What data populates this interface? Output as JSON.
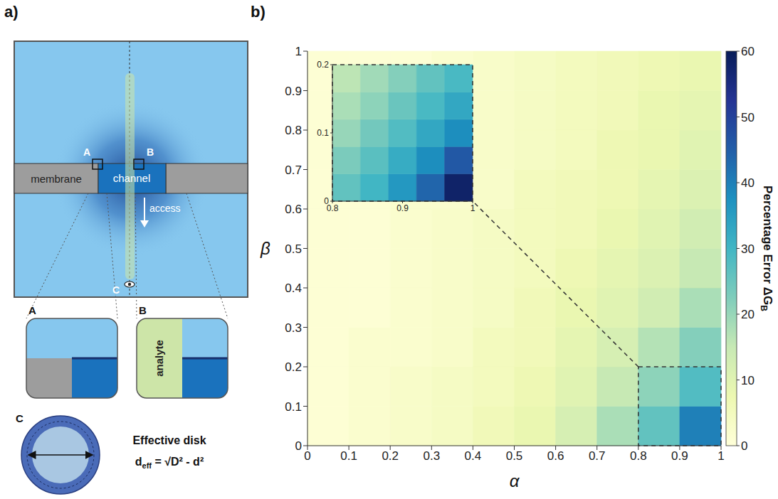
{
  "panel_labels": [
    "a)",
    "b)"
  ],
  "diagram": {
    "membrane": "membrane",
    "channel": "channel",
    "access": "access",
    "markers": [
      "A",
      "B",
      "C"
    ],
    "zooms": [
      {
        "label": "A"
      },
      {
        "label": "B",
        "analyte": "analyte"
      },
      {
        "label": "C",
        "title": "Effective disk",
        "formula": {
          "lhs": "d",
          "lhs_sub": "eff",
          "rhs": "= √D² - d²"
        }
      }
    ]
  },
  "chart_data": [
    {
      "type": "heatmap",
      "x_label": "α",
      "y_label": "β",
      "xlim": [
        0,
        1
      ],
      "ylim": [
        0,
        1
      ],
      "xticks": [
        0,
        0.1,
        0.2,
        0.3,
        0.4,
        0.5,
        0.6,
        0.7,
        0.8,
        0.9,
        1
      ],
      "yticks": [
        0,
        0.1,
        0.2,
        0.3,
        0.4,
        0.5,
        0.6,
        0.7,
        0.8,
        0.9,
        1
      ],
      "x_edges": [
        0,
        0.1,
        0.2,
        0.3,
        0.4,
        0.5,
        0.6,
        0.7,
        0.8,
        0.9,
        1
      ],
      "y_edges": [
        0,
        0.1,
        0.2,
        0.3,
        0.4,
        0.5,
        0.6,
        0.7,
        0.8,
        0.9,
        1
      ],
      "cells": [
        [
          1,
          2,
          3,
          4,
          6,
          8,
          12,
          18,
          26,
          40
        ],
        [
          1,
          2,
          3,
          4,
          5,
          7,
          10,
          15,
          21,
          28
        ],
        [
          1,
          2,
          2,
          3,
          5,
          6,
          9,
          12,
          17,
          22
        ],
        [
          1,
          1,
          2,
          3,
          4,
          6,
          8,
          10,
          13,
          18
        ],
        [
          1,
          1,
          2,
          3,
          4,
          5,
          7,
          9,
          11,
          15
        ],
        [
          1,
          1,
          2,
          3,
          4,
          5,
          6,
          8,
          10,
          13
        ],
        [
          1,
          1,
          2,
          2,
          3,
          5,
          6,
          7,
          9,
          11
        ],
        [
          1,
          1,
          2,
          2,
          3,
          4,
          5,
          7,
          8,
          10
        ],
        [
          1,
          1,
          2,
          2,
          3,
          4,
          5,
          6,
          8,
          9
        ],
        [
          1,
          1,
          1,
          2,
          3,
          4,
          5,
          6,
          7,
          8
        ]
      ],
      "colorbar": {
        "label": "Percentage Error ΔG",
        "label_subscript": "B",
        "range": [
          0,
          60
        ],
        "ticks": [
          0,
          10,
          20,
          30,
          40,
          50,
          60
        ]
      }
    },
    {
      "type": "heatmap",
      "xlim": [
        0.8,
        1
      ],
      "ylim": [
        0,
        0.2
      ],
      "xticks": [
        0.8,
        0.9,
        1
      ],
      "yticks": [
        0,
        0.1,
        0.2
      ],
      "x_edges": [
        0.8,
        0.84,
        0.88,
        0.92,
        0.96,
        1
      ],
      "y_edges": [
        0,
        0.04,
        0.08,
        0.12,
        0.16,
        0.2
      ],
      "cells": [
        [
          26,
          30,
          36,
          44,
          58
        ],
        [
          23,
          27,
          32,
          38,
          46
        ],
        [
          20,
          24,
          28,
          33,
          38
        ],
        [
          18,
          21,
          25,
          29,
          33
        ],
        [
          16,
          19,
          22,
          26,
          29
        ]
      ]
    }
  ]
}
